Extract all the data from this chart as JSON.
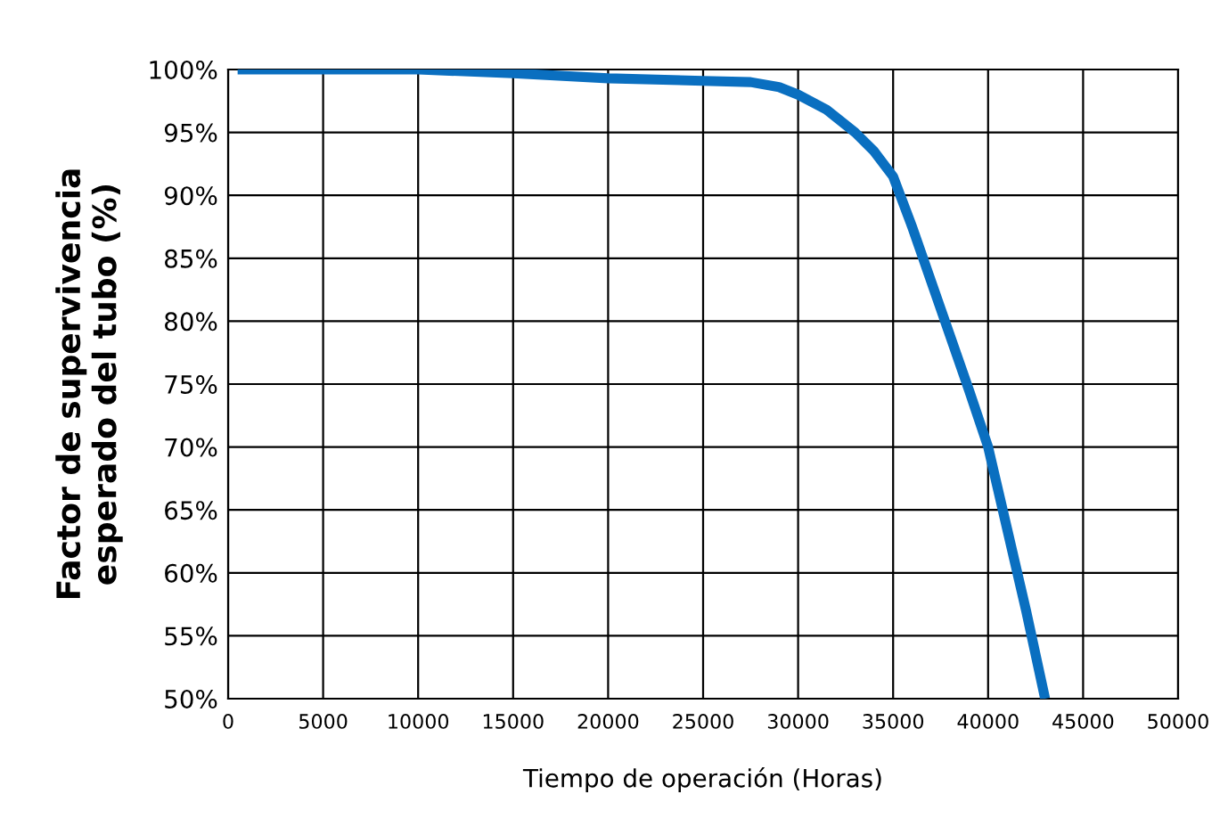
{
  "chart_data": {
    "type": "line",
    "xlabel": "Tiempo de operación (Horas)",
    "ylabel": "Factor de supervivencia\nesperado del tubo (%)",
    "x": [
      500,
      5000,
      10000,
      15000,
      20000,
      25000,
      27500,
      29000,
      30000,
      31500,
      33000,
      34000,
      35000,
      36000,
      37500,
      39000,
      40000,
      41000,
      42000,
      43000
    ],
    "series": [
      {
        "color": "#0a6fc0",
        "values": [
          100,
          100,
          100,
          99.7,
          99.3,
          99.1,
          99,
          98.6,
          98,
          96.8,
          95,
          93.5,
          91.5,
          87.5,
          81,
          74.5,
          70,
          63.5,
          57,
          50
        ]
      }
    ],
    "xlim": [
      0,
      50000
    ],
    "xticks": [
      0,
      5000,
      10000,
      15000,
      20000,
      25000,
      30000,
      35000,
      40000,
      45000,
      50000
    ],
    "ylim": [
      50,
      100
    ],
    "yticks": [
      {
        "value": 50,
        "label": "50%"
      },
      {
        "value": 55,
        "label": "55%"
      },
      {
        "value": 60,
        "label": "60%"
      },
      {
        "value": 65,
        "label": "65%"
      },
      {
        "value": 70,
        "label": "70%"
      },
      {
        "value": 75,
        "label": "75%"
      },
      {
        "value": 80,
        "label": "80%"
      },
      {
        "value": 85,
        "label": "85%"
      },
      {
        "value": 90,
        "label": "90%"
      },
      {
        "value": 95,
        "label": "95%"
      },
      {
        "value": 100,
        "label": "100%"
      }
    ],
    "grid": true,
    "legend": false,
    "marker": "none",
    "line_style": "solid"
  }
}
